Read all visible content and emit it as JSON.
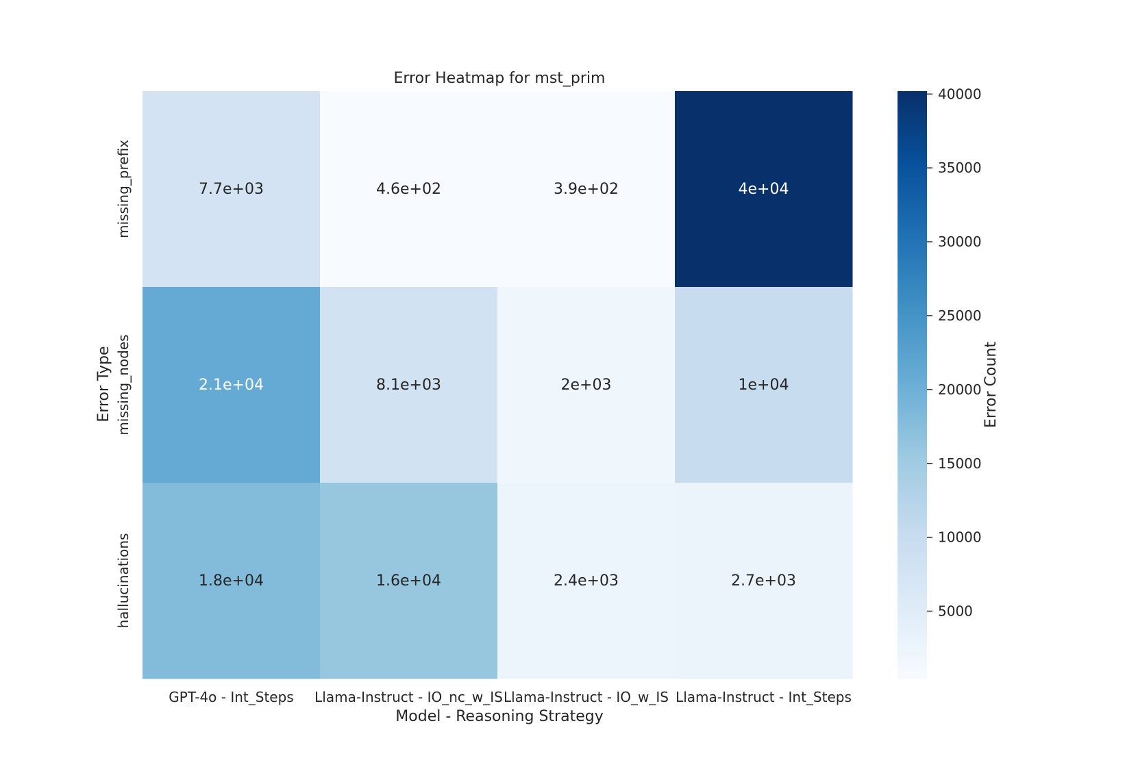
{
  "chart_data": {
    "type": "heatmap",
    "title": "Error Heatmap for mst_prim",
    "xlabel": "Model - Reasoning Strategy",
    "ylabel": "Error Type",
    "colorbar_label": "Error Count",
    "x_categories": [
      "GPT-4o - Int_Steps",
      "Llama-Instruct - IO_nc_w_IS",
      "Llama-Instruct - IO_w_IS",
      "Llama-Instruct - Int_Steps"
    ],
    "y_categories": [
      "missing_prefix",
      "missing_nodes",
      "hallucinations"
    ],
    "values": [
      [
        7700,
        460,
        390,
        40200
      ],
      [
        21000,
        8100,
        2000,
        10000
      ],
      [
        18000,
        16000,
        2400,
        2700
      ]
    ],
    "annotations": [
      [
        "7.7e+03",
        "4.6e+02",
        "3.9e+02",
        "4e+04"
      ],
      [
        "2.1e+04",
        "8.1e+03",
        "2e+03",
        "1e+04"
      ],
      [
        "1.8e+04",
        "1.6e+04",
        "2.4e+03",
        "2.7e+03"
      ]
    ],
    "colormap": "Blues",
    "colorbar_range": [
      390,
      40200
    ],
    "colorbar_ticks": [
      "5000",
      "10000",
      "15000",
      "20000",
      "25000",
      "30000",
      "35000",
      "40000"
    ],
    "colorbar_tick_values": [
      5000,
      10000,
      15000,
      20000,
      25000,
      30000,
      35000,
      40000
    ],
    "grid": false
  }
}
